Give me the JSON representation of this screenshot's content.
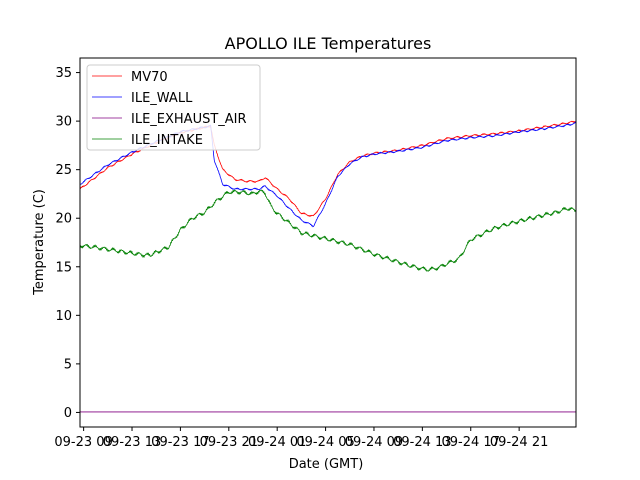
{
  "chart_data": {
    "type": "line",
    "title": "APOLLO ILE Temperatures",
    "xlabel": "Date (GMT)",
    "ylabel": "Temperature (C)",
    "xlim_hours": [
      -0.3,
      40.7
    ],
    "ylim": [
      -1.5,
      36.5
    ],
    "yticks": [
      0,
      5,
      10,
      15,
      20,
      25,
      30,
      35
    ],
    "xticks": [
      {
        "h": 0,
        "label": "09-23 09"
      },
      {
        "h": 4,
        "label": "09-23 13"
      },
      {
        "h": 8,
        "label": "09-23 17"
      },
      {
        "h": 12,
        "label": "09-23 21"
      },
      {
        "h": 16,
        "label": "09-24 01"
      },
      {
        "h": 20,
        "label": "09-24 05"
      },
      {
        "h": 24,
        "label": "09-24 09"
      },
      {
        "h": 28,
        "label": "09-24 13"
      },
      {
        "h": 32,
        "label": "09-24 17"
      },
      {
        "h": 36,
        "label": "09-24 21"
      }
    ],
    "legend_position": "top-left",
    "series": [
      {
        "name": "MV70",
        "color": "#ff0000",
        "x": [
          -0.3,
          2,
          4,
          6,
          8,
          10.5,
          10.8,
          11.5,
          12.5,
          13.5,
          14.5,
          15,
          16,
          17,
          18,
          19,
          20,
          21,
          22,
          23,
          24,
          26,
          28,
          30,
          32,
          34,
          36,
          38,
          40,
          40.7
        ],
        "y": [
          23.0,
          25.2,
          26.6,
          27.8,
          28.8,
          29.5,
          27.5,
          25.0,
          24.0,
          23.8,
          23.8,
          24.2,
          23.0,
          22.0,
          20.5,
          20.2,
          22.0,
          24.5,
          25.8,
          26.4,
          26.7,
          27.0,
          27.5,
          28.2,
          28.5,
          28.7,
          29.0,
          29.4,
          29.8,
          30.0
        ]
      },
      {
        "name": "ILE_WALL",
        "color": "#0000ff",
        "x": [
          -0.3,
          2,
          4,
          6,
          8,
          10.5,
          10.8,
          11.5,
          12.5,
          13.5,
          14.5,
          15,
          16,
          17,
          18,
          19,
          20,
          21,
          22,
          23,
          24,
          26,
          28,
          30,
          32,
          34,
          36,
          38,
          40,
          40.7
        ],
        "y": [
          23.5,
          25.5,
          26.8,
          27.9,
          28.9,
          29.5,
          26.0,
          23.5,
          23.0,
          23.0,
          23.0,
          23.3,
          22.3,
          21.0,
          19.8,
          19.2,
          21.5,
          24.3,
          25.6,
          26.3,
          26.6,
          26.9,
          27.3,
          28.0,
          28.3,
          28.5,
          28.9,
          29.2,
          29.6,
          29.8
        ]
      },
      {
        "name": "ILE_EXHAUST_AIR",
        "color": "#800080",
        "x": [
          -0.3,
          40.7
        ],
        "y": [
          0.05,
          0.05
        ]
      },
      {
        "name": "ILE_INTAKE",
        "color": "#008000",
        "x": [
          -0.3,
          1,
          2,
          3,
          4,
          5,
          5.5,
          6,
          7,
          8,
          9,
          10,
          10.5,
          11,
          12,
          13,
          14,
          14.5,
          15,
          15.5,
          16,
          18,
          20,
          22,
          23,
          24,
          25,
          26,
          27,
          28,
          28.5,
          29,
          29.5,
          30,
          31,
          32,
          34,
          36,
          37,
          38,
          39,
          40,
          40.7
        ],
        "y": [
          17.2,
          17.0,
          16.8,
          16.6,
          16.4,
          16.2,
          16.2,
          16.5,
          17.0,
          18.8,
          20.0,
          20.6,
          21.2,
          21.8,
          22.7,
          22.7,
          22.5,
          22.8,
          22.6,
          21.2,
          20.5,
          18.5,
          17.9,
          17.3,
          16.8,
          16.3,
          15.9,
          15.5,
          15.1,
          14.8,
          14.7,
          14.8,
          15.0,
          15.3,
          15.8,
          17.8,
          19.0,
          19.7,
          20.0,
          20.3,
          20.6,
          21.0,
          20.8
        ]
      }
    ]
  }
}
